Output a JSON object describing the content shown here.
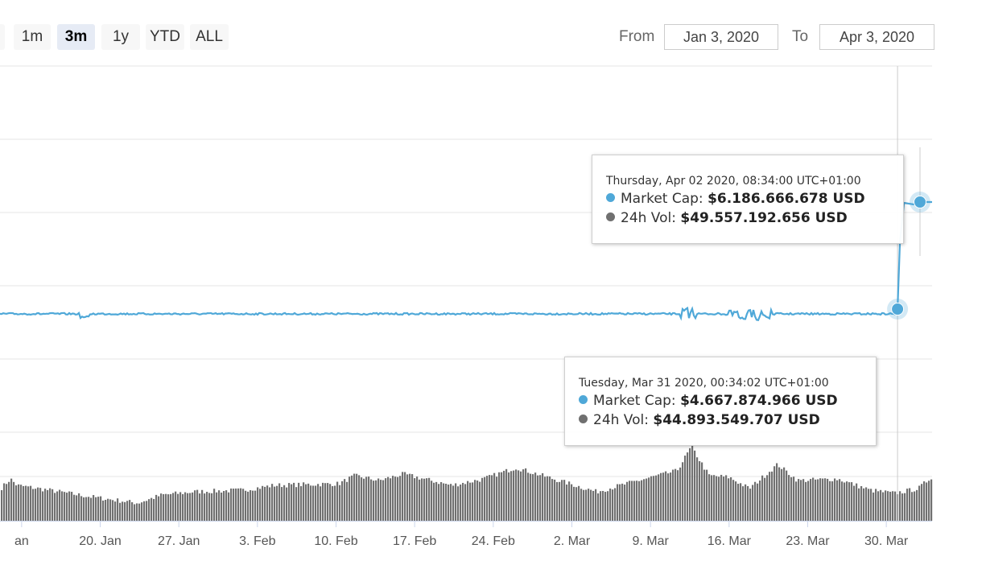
{
  "range_selector": {
    "buttons": [
      {
        "label": "1m",
        "active": false
      },
      {
        "label": "3m",
        "active": true
      },
      {
        "label": "1y",
        "active": false
      },
      {
        "label": "YTD",
        "active": false
      },
      {
        "label": "ALL",
        "active": false
      }
    ]
  },
  "date_range": {
    "from_label": "From",
    "from_value": "Jan 3, 2020",
    "to_label": "To",
    "to_value": "Apr 3, 2020"
  },
  "tooltips": [
    {
      "date": "Thursday, Apr 02 2020, 08:34:00 UTC+01:00",
      "rows": [
        {
          "label": "Market Cap:",
          "value": "$6.186.666.678 USD",
          "color": "#4fa8d8"
        },
        {
          "label": "24h Vol:",
          "value": "$49.557.192.656 USD",
          "color": "#707070"
        }
      ]
    },
    {
      "date": "Tuesday, Mar 31 2020, 00:34:02 UTC+01:00",
      "rows": [
        {
          "label": "Market Cap:",
          "value": "$4.667.874.966 USD",
          "color": "#4fa8d8"
        },
        {
          "label": "24h Vol:",
          "value": "$44.893.549.707 USD",
          "color": "#707070"
        }
      ]
    }
  ],
  "chart_data": {
    "type": "line",
    "title": "",
    "xlabel": "",
    "ylabel": "",
    "x_tick_labels": [
      "an",
      "20. Jan",
      "27. Jan",
      "3. Feb",
      "10. Feb",
      "17. Feb",
      "24. Feb",
      "2. Mar",
      "9. Mar",
      "16. Mar",
      "23. Mar",
      "30. Mar"
    ],
    "x_range": [
      "2020-01-10",
      "2020-04-02"
    ],
    "grid": true,
    "colors": {
      "market_cap": "#4fa8d8",
      "volume": "#707070",
      "crosshair": "#cccccc"
    },
    "series": [
      {
        "name": "Market Cap",
        "unit": "USD",
        "type": "line",
        "baseline": 4600000000,
        "points": [
          {
            "x": "2020-03-31",
            "y": 4667874966
          },
          {
            "x": "2020-04-02",
            "y": 6186666678
          }
        ]
      },
      {
        "name": "24h Vol",
        "unit": "USD",
        "type": "column",
        "points": [
          {
            "x": "2020-03-31",
            "y": 44893549707
          },
          {
            "x": "2020-04-02",
            "y": 49557192656
          }
        ]
      }
    ]
  }
}
